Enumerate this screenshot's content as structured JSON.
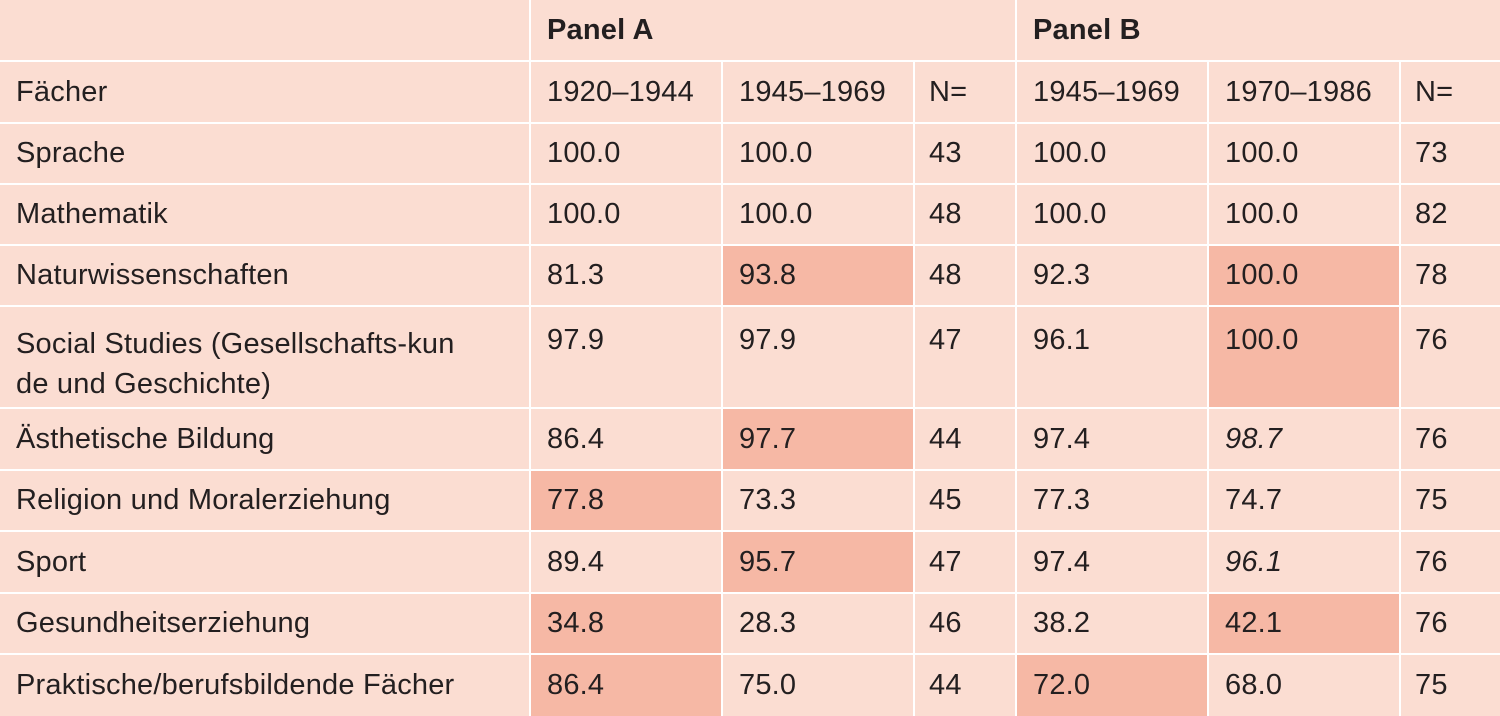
{
  "panels": {
    "a": "Panel A",
    "b": "Panel B"
  },
  "columns": {
    "subject": "Fächer",
    "a_p1": "1920–1944",
    "a_p2": "1945–1969",
    "a_n": "N=",
    "b_p1": "1945–1969",
    "b_p2": "1970–1986",
    "b_n": "N="
  },
  "rows": [
    {
      "subject": "Sprache",
      "a1": "100.0",
      "a2": "100.0",
      "an": "43",
      "b1": "100.0",
      "b2": "100.0",
      "bn": "73"
    },
    {
      "subject": "Mathematik",
      "a1": "100.0",
      "a2": "100.0",
      "an": "48",
      "b1": "100.0",
      "b2": "100.0",
      "bn": "82"
    },
    {
      "subject": "Naturwissenschaften",
      "a1": "81.3",
      "a2": "93.8",
      "an": "48",
      "b1": "92.3",
      "b2": "100.0",
      "bn": "78"
    },
    {
      "subject": "Social Studies (Gesellschafts-kunde und Geschichte)",
      "a1": "97.9",
      "a2": "97.9",
      "an": "47",
      "b1": "96.1",
      "b2": "100.0",
      "bn": "76"
    },
    {
      "subject": "Ästhetische Bildung",
      "a1": "86.4",
      "a2": "97.7",
      "an": "44",
      "b1": "97.4",
      "b2": "98.7",
      "bn": "76"
    },
    {
      "subject": "Religion und Moralerziehung",
      "a1": "77.8",
      "a2": "73.3",
      "an": "45",
      "b1": "77.3",
      "b2": "74.7",
      "bn": "75"
    },
    {
      "subject": "Sport",
      "a1": "89.4",
      "a2": "95.7",
      "an": "47",
      "b1": "97.4",
      "b2": "96.1",
      "bn": "76"
    },
    {
      "subject": "Gesundheitserziehung",
      "a1": "34.8",
      "a2": "28.3",
      "an": "46",
      "b1": "38.2",
      "b2": "42.1",
      "bn": "76"
    },
    {
      "subject": "Praktische/berufsbildende Fächer",
      "a1": "86.4",
      "a2": "75.0",
      "an": "44",
      "b1": "72.0",
      "b2": "68.0",
      "bn": "75"
    }
  ],
  "colors": {
    "cell_background": "#fbddd2",
    "highlight": "#f6b8a5",
    "grid_lines": "#ffffff",
    "text": "#231f20"
  }
}
